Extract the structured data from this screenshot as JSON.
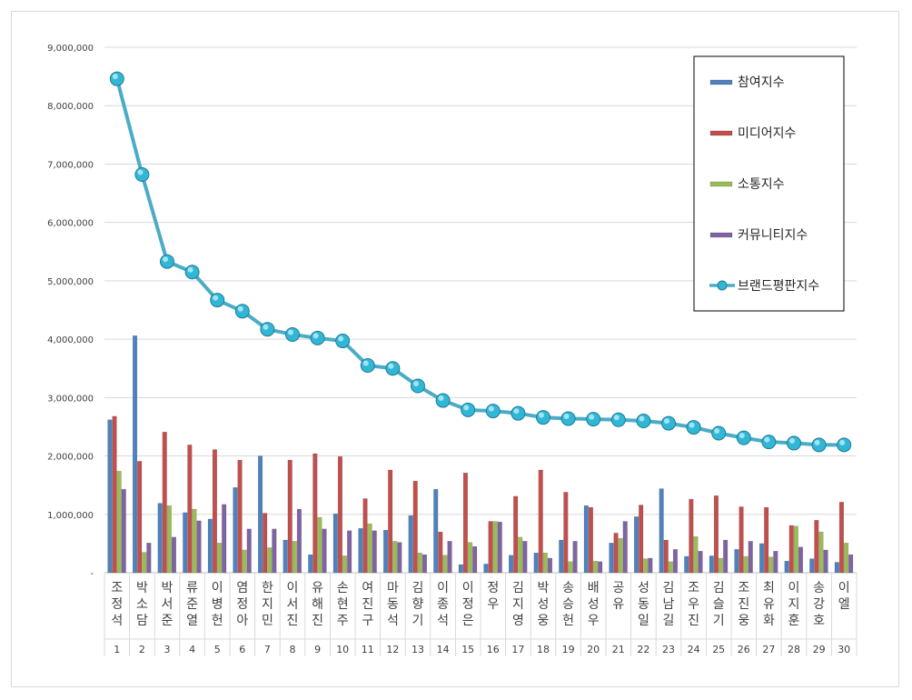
{
  "chart_data": {
    "type": "bar",
    "ylim": [
      0,
      9000000
    ],
    "y_ticks": [
      "-",
      "1,000,000",
      "2,000,000",
      "3,000,000",
      "4,000,000",
      "5,000,000",
      "6,000,000",
      "7,000,000",
      "8,000,000",
      "9,000,000"
    ],
    "grid": true,
    "legend_position": "top-right",
    "categories": [
      "조정석",
      "박소담",
      "박서준",
      "류준열",
      "이병헌",
      "염정아",
      "한지민",
      "이서진",
      "유해진",
      "손현주",
      "여진구",
      "마동석",
      "김향기",
      "이종석",
      "이정은",
      "정우",
      "김지영",
      "박성웅",
      "송승헌",
      "배성우",
      "공유",
      "성동일",
      "김남길",
      "조우진",
      "김슬기",
      "조진웅",
      "최유화",
      "이지훈",
      "송강호",
      "이엘"
    ],
    "ranks": [
      "1",
      "2",
      "3",
      "4",
      "5",
      "6",
      "7",
      "8",
      "9",
      "10",
      "11",
      "12",
      "13",
      "14",
      "15",
      "16",
      "17",
      "18",
      "19",
      "20",
      "21",
      "22",
      "23",
      "24",
      "25",
      "26",
      "27",
      "28",
      "29",
      "30"
    ],
    "series": [
      {
        "name": "참여지수",
        "type": "bar",
        "color": "#4f81bd",
        "values": [
          2620000,
          4060000,
          1190000,
          1030000,
          920000,
          1460000,
          2000000,
          560000,
          310000,
          1010000,
          760000,
          730000,
          980000,
          1430000,
          140000,
          150000,
          300000,
          340000,
          560000,
          1150000,
          510000,
          960000,
          1440000,
          280000,
          290000,
          400000,
          500000,
          200000,
          240000,
          180000
        ]
      },
      {
        "name": "미디어지수",
        "type": "bar",
        "color": "#c0504d",
        "values": [
          2680000,
          1910000,
          2410000,
          2190000,
          2110000,
          1930000,
          1020000,
          1930000,
          2040000,
          1990000,
          1270000,
          1760000,
          1570000,
          700000,
          1710000,
          880000,
          1310000,
          1760000,
          1380000,
          1120000,
          680000,
          1160000,
          560000,
          1260000,
          1320000,
          1130000,
          1120000,
          810000,
          900000,
          1210000
        ]
      },
      {
        "name": "소통지수",
        "type": "bar",
        "color": "#9bbb59",
        "values": [
          1740000,
          350000,
          1150000,
          1090000,
          510000,
          390000,
          430000,
          540000,
          950000,
          290000,
          840000,
          540000,
          340000,
          300000,
          520000,
          880000,
          610000,
          340000,
          190000,
          200000,
          590000,
          240000,
          190000,
          620000,
          250000,
          280000,
          270000,
          800000,
          700000,
          510000
        ]
      },
      {
        "name": "커뮤니티지수",
        "type": "bar",
        "color": "#8064a2",
        "values": [
          1430000,
          510000,
          610000,
          890000,
          1170000,
          750000,
          750000,
          1090000,
          750000,
          720000,
          720000,
          520000,
          310000,
          540000,
          450000,
          870000,
          540000,
          250000,
          540000,
          190000,
          880000,
          250000,
          400000,
          370000,
          560000,
          540000,
          370000,
          440000,
          390000,
          310000
        ]
      },
      {
        "name": "브랜드평판지수",
        "type": "line",
        "color": "#4bacc6",
        "values": [
          8460000,
          6820000,
          5330000,
          5150000,
          4670000,
          4480000,
          4170000,
          4080000,
          4020000,
          3970000,
          3550000,
          3500000,
          3200000,
          2950000,
          2790000,
          2770000,
          2730000,
          2660000,
          2640000,
          2630000,
          2620000,
          2600000,
          2560000,
          2490000,
          2390000,
          2310000,
          2240000,
          2220000,
          2190000,
          2190000
        ]
      }
    ]
  }
}
